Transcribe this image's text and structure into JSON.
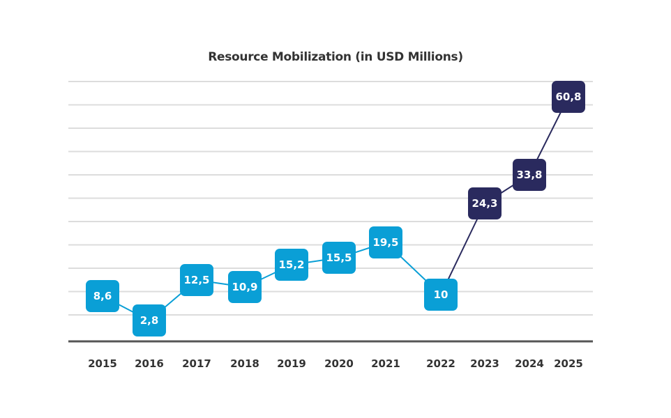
{
  "chart_data": {
    "type": "line",
    "title": "Resource Mobilization (in USD Millions)",
    "xlabel": "",
    "ylabel": "",
    "categories": [
      "2015",
      "2016",
      "2017",
      "2018",
      "2019",
      "2020",
      "2021",
      "2022",
      "2023",
      "2024",
      "2025"
    ],
    "values": [
      8.6,
      2.8,
      12.5,
      10.9,
      15.2,
      15.5,
      19.5,
      10,
      24.3,
      33.8,
      60.8
    ],
    "data_labels": [
      "8,6",
      "2,8",
      "12,5",
      "10,9",
      "15,2",
      "15,5",
      "19,5",
      "10",
      "24,3",
      "33,8",
      "60,8"
    ],
    "series_colors": {
      "historical": "#0a9fd6",
      "recent": "#2a2a5e"
    },
    "recent_from_index": 8,
    "gridlines": 11,
    "grid": true,
    "ylim": [
      0,
      64
    ],
    "y_ticks_shown": false,
    "legend": "none"
  }
}
